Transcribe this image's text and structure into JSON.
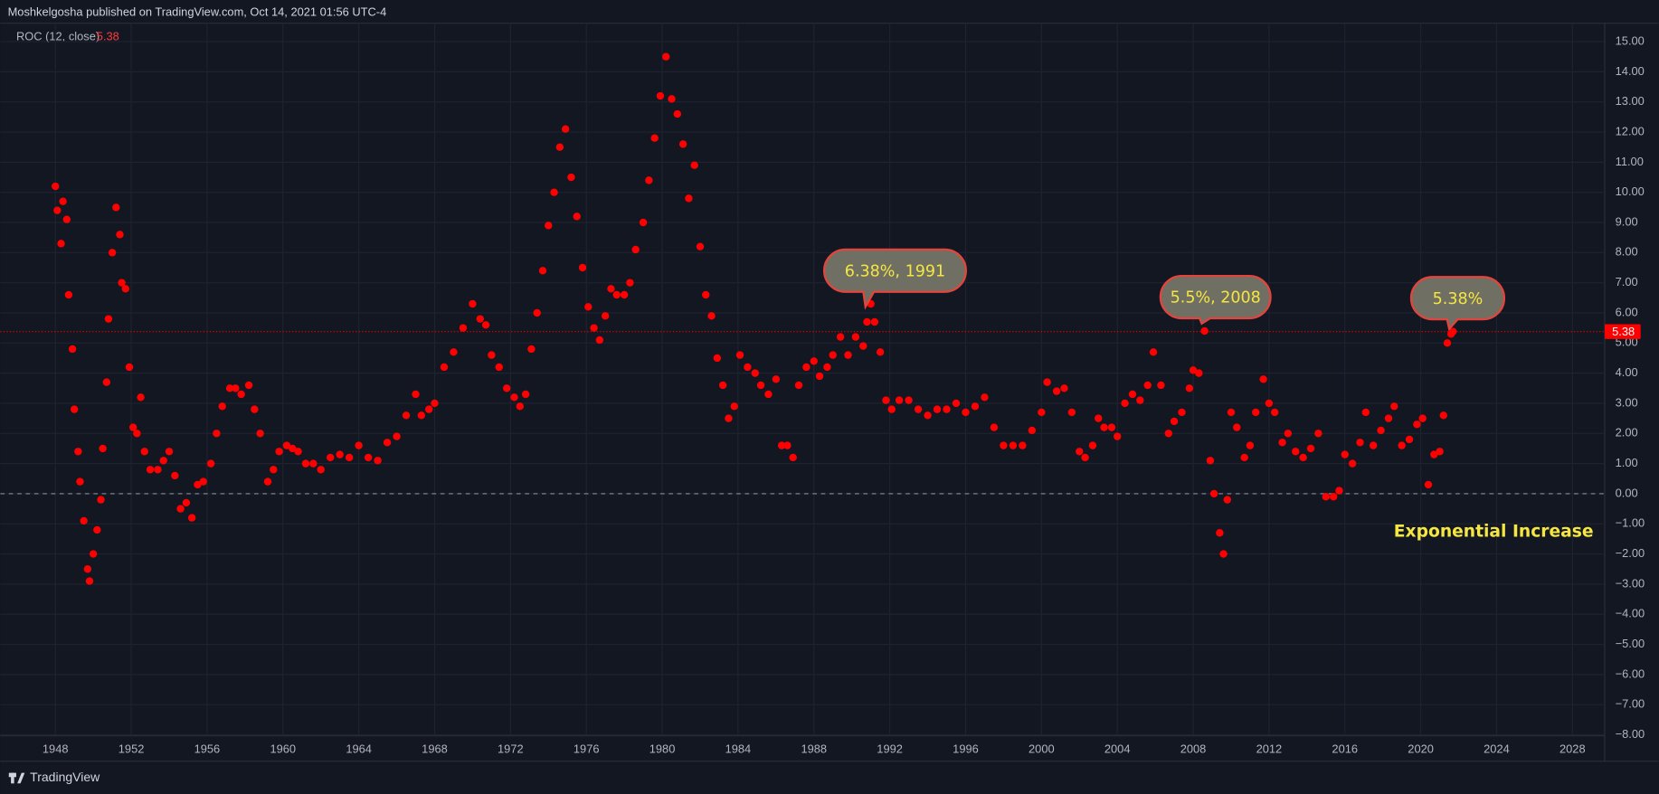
{
  "header": {
    "title": "Moshkelgosha published on TradingView.com, Oct 14, 2021 01:56 UTC-4"
  },
  "footer": {
    "brand": "TradingView"
  },
  "chart_data": {
    "type": "scatter",
    "last_value": 5.38,
    "annotations": [
      "6.38%, 1991",
      "5.5%, 2008",
      "5.38%",
      "Exponential Increase"
    ],
    "grid": true,
    "zero_line": 0,
    "xlim": [
      1945.1,
      2029.7
    ],
    "ylim": [
      -8,
      15.4
    ],
    "xticks": [
      1948,
      1952,
      1956,
      1960,
      1964,
      1968,
      1972,
      1976,
      1980,
      1984,
      1988,
      1992,
      1996,
      2000,
      2004,
      2008,
      2012,
      2016,
      2020,
      2024,
      2028
    ],
    "yticks": [
      {
        "value": 15,
        "label": "15.00"
      },
      {
        "value": 14,
        "label": "14.00"
      },
      {
        "value": 13,
        "label": "13.00"
      },
      {
        "value": 12,
        "label": "12.00"
      },
      {
        "value": 11,
        "label": "11.00"
      },
      {
        "value": 10,
        "label": "10.00"
      },
      {
        "value": 9,
        "label": "9.00"
      },
      {
        "value": 8,
        "label": "8.00"
      },
      {
        "value": 7,
        "label": "7.00"
      },
      {
        "value": 6,
        "label": "6.00"
      },
      {
        "value": 5,
        "label": "5.00"
      },
      {
        "value": 4,
        "label": "4.00"
      },
      {
        "value": 3,
        "label": "3.00"
      },
      {
        "value": 2,
        "label": "2.00"
      },
      {
        "value": 1,
        "label": "1.00"
      },
      {
        "value": 0,
        "label": "0.00"
      },
      {
        "value": -1,
        "label": "−1.00"
      },
      {
        "value": -2,
        "label": "−2.00"
      },
      {
        "value": -3,
        "label": "−3.00"
      },
      {
        "value": -4,
        "label": "−4.00"
      },
      {
        "value": -5,
        "label": "−5.00"
      },
      {
        "value": -6,
        "label": "−6.00"
      },
      {
        "value": -7,
        "label": "−7.00"
      },
      {
        "value": -8,
        "label": "−8.00"
      }
    ],
    "x": [
      1948.0,
      1948.1,
      1948.3,
      1948.4,
      1948.6,
      1948.7,
      1948.9,
      1949.0,
      1949.2,
      1949.3,
      1949.5,
      1949.7,
      1949.8,
      1950.0,
      1950.2,
      1950.4,
      1950.5,
      1950.7,
      1950.8,
      1951.0,
      1951.2,
      1951.4,
      1951.5,
      1951.7,
      1951.9,
      1952.1,
      1952.3,
      1952.5,
      1952.7,
      1953.0,
      1953.4,
      1953.7,
      1954.0,
      1954.3,
      1954.6,
      1954.9,
      1955.2,
      1955.5,
      1955.8,
      1956.2,
      1956.5,
      1956.8,
      1957.2,
      1957.5,
      1957.8,
      1958.2,
      1958.5,
      1958.8,
      1959.2,
      1959.5,
      1959.8,
      1960.2,
      1960.5,
      1960.8,
      1961.2,
      1961.6,
      1962.0,
      1962.5,
      1963.0,
      1963.5,
      1964.0,
      1964.5,
      1965.0,
      1965.5,
      1966.0,
      1966.5,
      1967.0,
      1967.3,
      1967.7,
      1968.0,
      1968.5,
      1969.0,
      1969.5,
      1970.0,
      1970.4,
      1970.7,
      1971.0,
      1971.4,
      1971.8,
      1972.2,
      1972.5,
      1972.8,
      1973.1,
      1973.4,
      1973.7,
      1974.0,
      1974.3,
      1974.6,
      1974.9,
      1975.2,
      1975.5,
      1975.8,
      1976.1,
      1976.4,
      1976.7,
      1977.0,
      1977.3,
      1977.6,
      1978.0,
      1978.3,
      1978.6,
      1979.0,
      1979.3,
      1979.6,
      1979.9,
      1980.2,
      1980.5,
      1980.8,
      1981.1,
      1981.4,
      1981.7,
      1982.0,
      1982.3,
      1982.6,
      1982.9,
      1983.2,
      1983.5,
      1983.8,
      1984.1,
      1984.5,
      1984.9,
      1985.2,
      1985.6,
      1986.0,
      1986.3,
      1986.6,
      1986.9,
      1987.2,
      1987.6,
      1988.0,
      1988.3,
      1988.7,
      1989.0,
      1989.4,
      1989.8,
      1990.2,
      1990.6,
      1990.8,
      1991.0,
      1991.2,
      1991.5,
      1991.8,
      1992.1,
      1992.5,
      1993.0,
      1993.5,
      1994.0,
      1994.5,
      1995.0,
      1995.5,
      1996.0,
      1996.5,
      1997.0,
      1997.5,
      1998.0,
      1998.5,
      1999.0,
      1999.5,
      2000.0,
      2000.3,
      2000.8,
      2001.2,
      2001.6,
      2002.0,
      2002.3,
      2002.7,
      2003.0,
      2003.3,
      2003.7,
      2004.0,
      2004.4,
      2004.8,
      2005.2,
      2005.6,
      2005.9,
      2006.3,
      2006.7,
      2007.0,
      2007.4,
      2007.8,
      2008.0,
      2008.3,
      2008.6,
      2008.9,
      2009.1,
      2009.4,
      2009.6,
      2009.8,
      2010.0,
      2010.3,
      2010.7,
      2011.0,
      2011.3,
      2011.7,
      2012.0,
      2012.3,
      2012.7,
      2013.0,
      2013.4,
      2013.8,
      2014.2,
      2014.6,
      2015.0,
      2015.4,
      2015.7,
      2016.0,
      2016.4,
      2016.8,
      2017.1,
      2017.5,
      2017.9,
      2018.3,
      2018.6,
      2019.0,
      2019.4,
      2019.8,
      2020.1,
      2020.4,
      2020.7,
      2021.0,
      2021.2,
      2021.4,
      2021.6,
      2021.7
    ],
    "series": [
      {
        "name": "ROC (12, close)",
        "color": "#ff0000",
        "values": [
          10.2,
          9.4,
          8.3,
          9.7,
          9.1,
          6.6,
          4.8,
          2.8,
          1.4,
          0.4,
          -0.9,
          -2.5,
          -2.9,
          -2.0,
          -1.2,
          -0.2,
          1.5,
          3.7,
          5.8,
          8.0,
          9.5,
          8.6,
          7.0,
          6.8,
          4.2,
          2.2,
          2.0,
          3.2,
          1.4,
          0.8,
          0.8,
          1.1,
          1.4,
          0.6,
          -0.5,
          -0.3,
          -0.8,
          0.3,
          0.4,
          1.0,
          2.0,
          2.9,
          3.5,
          3.5,
          3.3,
          3.6,
          2.8,
          2.0,
          0.4,
          0.8,
          1.4,
          1.6,
          1.5,
          1.4,
          1.0,
          1.0,
          0.8,
          1.2,
          1.3,
          1.2,
          1.6,
          1.2,
          1.1,
          1.7,
          1.9,
          2.6,
          3.3,
          2.6,
          2.8,
          3.0,
          4.2,
          4.7,
          5.5,
          6.3,
          5.8,
          5.6,
          4.6,
          4.2,
          3.5,
          3.2,
          2.9,
          3.3,
          4.8,
          6.0,
          7.4,
          8.9,
          10.0,
          11.5,
          12.1,
          10.5,
          9.2,
          7.5,
          6.2,
          5.5,
          5.1,
          5.9,
          6.8,
          6.6,
          6.6,
          7.0,
          8.1,
          9.0,
          10.4,
          11.8,
          13.2,
          14.5,
          13.1,
          12.6,
          11.6,
          9.8,
          10.9,
          8.2,
          6.6,
          5.9,
          4.5,
          3.6,
          2.5,
          2.9,
          4.6,
          4.2,
          4.0,
          3.6,
          3.3,
          3.8,
          1.6,
          1.6,
          1.2,
          3.6,
          4.2,
          4.4,
          3.9,
          4.2,
          4.6,
          5.2,
          4.6,
          5.2,
          4.9,
          5.7,
          6.3,
          5.7,
          4.7,
          3.1,
          2.8,
          3.1,
          3.1,
          2.8,
          2.6,
          2.8,
          2.8,
          3.0,
          2.7,
          2.9,
          3.2,
          2.2,
          1.6,
          1.6,
          1.6,
          2.1,
          2.7,
          3.7,
          3.4,
          3.5,
          2.7,
          1.4,
          1.2,
          1.6,
          2.5,
          2.2,
          2.2,
          1.9,
          3.0,
          3.3,
          3.1,
          3.6,
          4.7,
          3.6,
          2.0,
          2.4,
          2.7,
          3.5,
          4.1,
          4.0,
          5.4,
          1.1,
          0.0,
          -1.3,
          -2.0,
          -0.2,
          2.7,
          2.2,
          1.2,
          1.6,
          2.7,
          3.8,
          3.0,
          2.7,
          1.7,
          2.0,
          1.4,
          1.2,
          1.5,
          2.0,
          -0.1,
          -0.1,
          0.1,
          1.3,
          1.0,
          1.7,
          2.7,
          1.6,
          2.1,
          2.5,
          2.9,
          1.6,
          1.8,
          2.3,
          2.5,
          0.3,
          1.3,
          1.4,
          2.6,
          5.0,
          5.3,
          5.38
        ]
      }
    ]
  }
}
